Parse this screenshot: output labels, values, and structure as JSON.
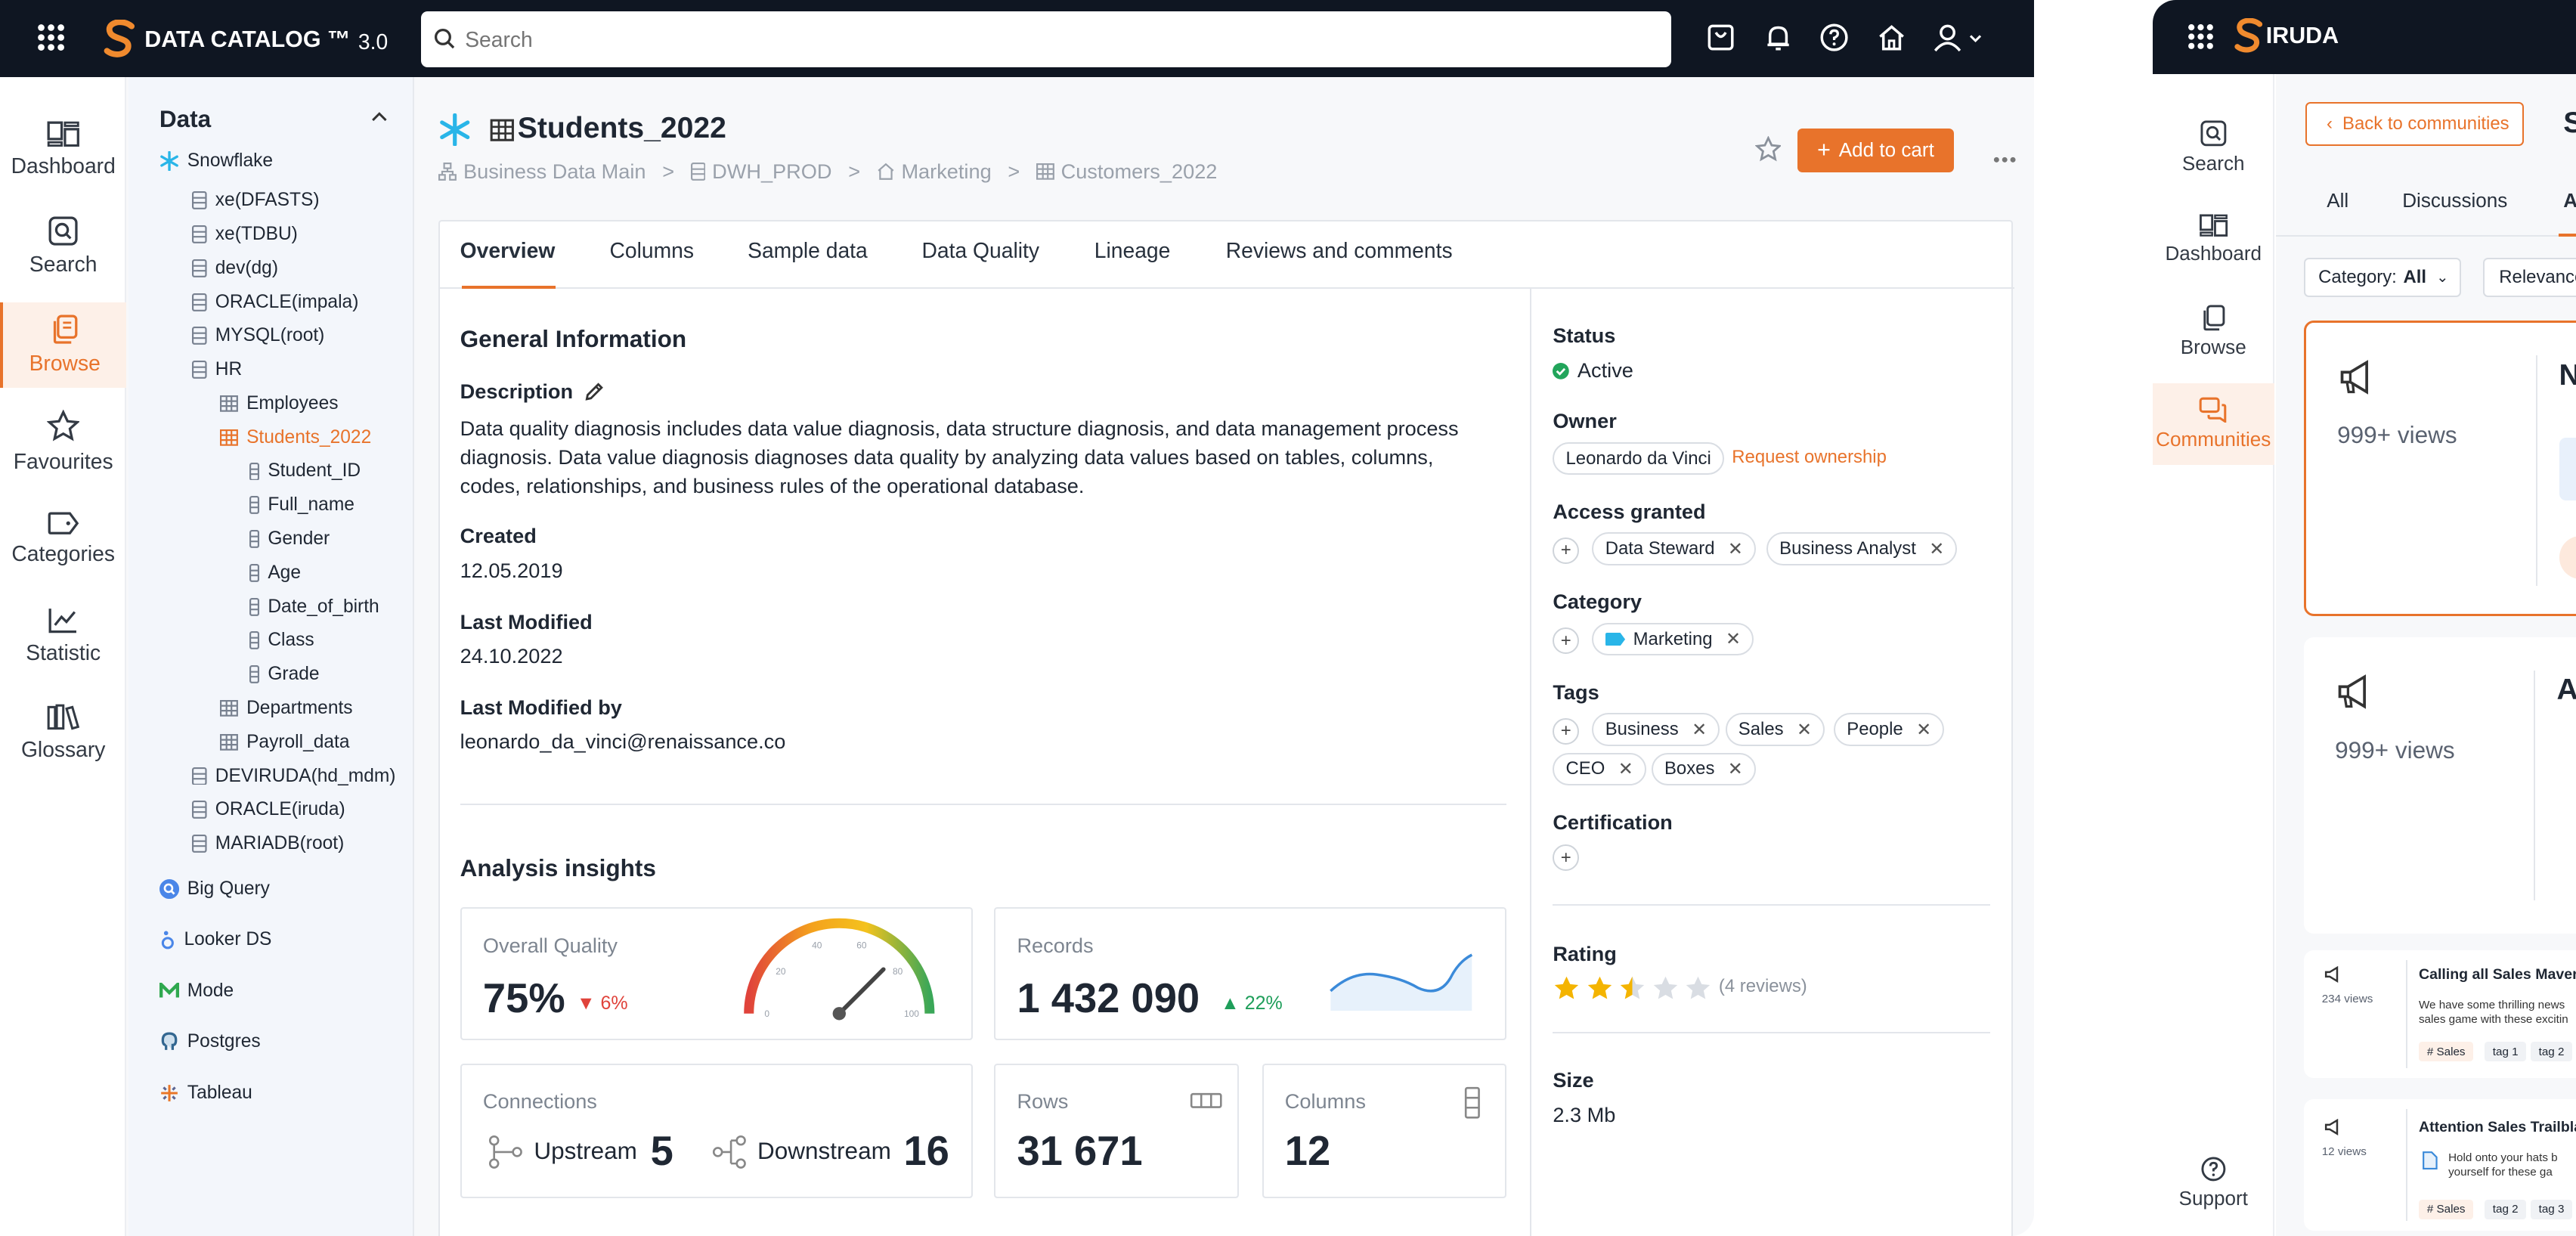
{
  "app": {
    "brand": "DATA CATALOG ™",
    "version": "3.0",
    "search_placeholder": "Search"
  },
  "leftnav": [
    {
      "label": "Dashboard",
      "icon": "dashboard-icon"
    },
    {
      "label": "Search",
      "icon": "search-icon"
    },
    {
      "label": "Browse",
      "icon": "browse-icon",
      "active": true
    },
    {
      "label": "Favourites",
      "icon": "star-icon"
    },
    {
      "label": "Categories",
      "icon": "tag-icon"
    },
    {
      "label": "Statistic",
      "icon": "chart-icon"
    },
    {
      "label": "Glossary",
      "icon": "books-icon"
    }
  ],
  "tree": {
    "header": "Data",
    "nodes": [
      {
        "label": "Snowflake",
        "level": 0,
        "icon": "snowflake"
      },
      {
        "label": "xe(DFASTS)",
        "level": 1,
        "icon": "db"
      },
      {
        "label": "xe(TDBU)",
        "level": 1,
        "icon": "db"
      },
      {
        "label": "dev(dg)",
        "level": 1,
        "icon": "db"
      },
      {
        "label": "ORACLE(impala)",
        "level": 1,
        "icon": "db"
      },
      {
        "label": "MYSQL(root)",
        "level": 1,
        "icon": "db"
      },
      {
        "label": "HR",
        "level": 1,
        "icon": "db"
      },
      {
        "label": "Employees",
        "level": 2,
        "icon": "table"
      },
      {
        "label": "Students_2022",
        "level": 2,
        "icon": "table",
        "selected": true
      },
      {
        "label": "Student_ID",
        "level": 3,
        "icon": "column"
      },
      {
        "label": "Full_name",
        "level": 3,
        "icon": "column"
      },
      {
        "label": "Gender",
        "level": 3,
        "icon": "column"
      },
      {
        "label": "Age",
        "level": 3,
        "icon": "column"
      },
      {
        "label": "Date_of_birth",
        "level": 3,
        "icon": "column"
      },
      {
        "label": "Class",
        "level": 3,
        "icon": "column"
      },
      {
        "label": "Grade",
        "level": 3,
        "icon": "column"
      },
      {
        "label": "Departments",
        "level": 2,
        "icon": "table"
      },
      {
        "label": "Payroll_data",
        "level": 2,
        "icon": "table"
      },
      {
        "label": "DEVIRUDA(hd_mdm)",
        "level": 1,
        "icon": "db"
      },
      {
        "label": "ORACLE(iruda)",
        "level": 1,
        "icon": "db"
      },
      {
        "label": "MARIADB(root)",
        "level": 1,
        "icon": "db"
      },
      {
        "label": "Big Query",
        "level": 0,
        "icon": "bigquery"
      },
      {
        "label": "Looker DS",
        "level": 0,
        "icon": "looker"
      },
      {
        "label": "Mode",
        "level": 0,
        "icon": "mode"
      },
      {
        "label": "Postgres",
        "level": 0,
        "icon": "postgres"
      },
      {
        "label": "Tableau",
        "level": 0,
        "icon": "tableau"
      }
    ]
  },
  "asset": {
    "title": "Students_2022",
    "breadcrumb": [
      "Business Data Main",
      "DWH_PROD",
      "Marketing",
      "Customers_2022"
    ],
    "add_to_cart": "Add to cart"
  },
  "tabs": [
    "Overview",
    "Columns",
    "Sample data",
    "Data Quality",
    "Lineage",
    "Reviews and comments"
  ],
  "general": {
    "heading": "General Information",
    "description_label": "Description",
    "description": "Data quality diagnosis includes data value diagnosis, data structure diagnosis, and data management process diagnosis. Data value diagnosis diagnoses data quality by analyzing data values based on tables, columns, codes, relationships, and business rules of the operational database.",
    "created_label": "Created",
    "created": "12.05.2019",
    "modified_label": "Last Modified",
    "modified": "24.10.2022",
    "modified_by_label": "Last Modified by",
    "modified_by": "leonardo_da_vinci@renaissance.co"
  },
  "insights": {
    "heading": "Analysis insights",
    "quality_label": "Overall Quality",
    "quality_value": "75%",
    "quality_change": "6%",
    "gauge_ticks": [
      "0",
      "20",
      "40",
      "60",
      "80",
      "100"
    ],
    "gauge_level": 0.75,
    "records_label": "Records",
    "records_value": "1 432 090",
    "records_change": "22%",
    "connections_label": "Connections",
    "upstream_label": "Upstream",
    "upstream_value": "5",
    "downstream_label": "Downstream",
    "downstream_value": "16",
    "rows_label": "Rows",
    "rows_value": "31 671",
    "columns_label": "Columns",
    "columns_value": "12"
  },
  "side": {
    "status_label": "Status",
    "status": "Active",
    "owner_label": "Owner",
    "owner": "Leonardo da Vinci",
    "request_ownership": "Request ownership",
    "access_label": "Access granted",
    "access": [
      "Data Steward",
      "Business Analyst"
    ],
    "category_label": "Category",
    "category": "Marketing",
    "tags_label": "Tags",
    "tags": [
      "Business",
      "Sales",
      "People",
      "CEO",
      "Boxes"
    ],
    "cert_label": "Certification",
    "rating_label": "Rating",
    "rating": 2.5,
    "reviews": "(4 reviews)",
    "size_label": "Size",
    "size": "2.3 Mb"
  },
  "colors": {
    "accent": "#e8732b",
    "topbar": "#0f1622",
    "active_green": "#22a55b",
    "down_red": "#e0433b",
    "up_green": "#1e9e5a"
  },
  "win2": {
    "brand": "IRUDA",
    "nav": [
      "Search",
      "Dashboard",
      "Browse",
      "Communities"
    ],
    "support": "Support",
    "back": "Back to communities",
    "title_initial": "S",
    "tabs": [
      "All",
      "Discussions",
      "A"
    ],
    "category_filter_label": "Category:",
    "category_filter_value": "All",
    "relevance": "Relevance",
    "card1_views": "999+ views",
    "card1_initial": "N",
    "card2_views": "999+ views",
    "card2_initial": "A",
    "post1_title": "Calling all Sales Maveri",
    "post1_views": "234 views",
    "post1_text": "We have some thrilling news sales game with these excitin",
    "post1_tags": [
      "# Sales",
      "tag 1",
      "tag 2"
    ],
    "post2_title": "Attention Sales Trailbla",
    "post2_views": "12 views",
    "post2_text": "Hold onto your hats b yourself for these ga",
    "post2_tags": [
      "# Sales",
      "tag 2",
      "tag 3"
    ]
  }
}
